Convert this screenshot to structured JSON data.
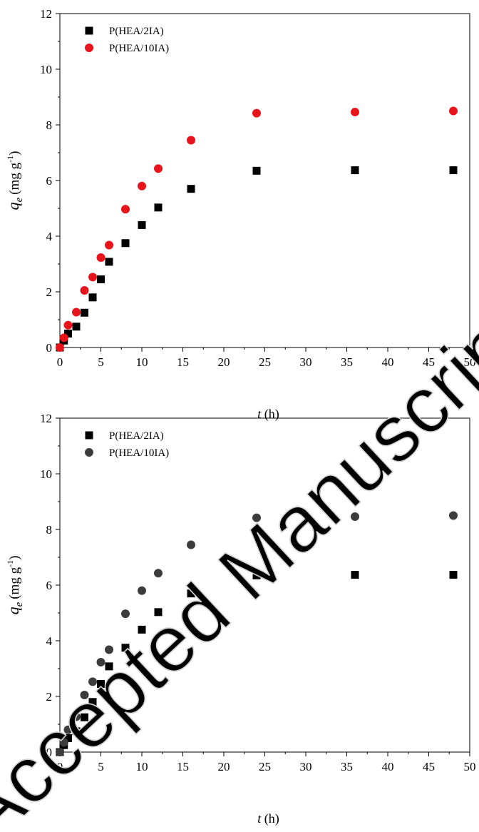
{
  "watermark": "Accepted Manuscript",
  "chart_data": [
    {
      "type": "scatter",
      "xlabel": {
        "var": "t",
        "unit": " (h)"
      },
      "ylabel": {
        "var": "q",
        "sub": "e",
        "unit_pre": "(mg g",
        "sup": "-1",
        "unit_post": ")"
      },
      "xlim": [
        0,
        50
      ],
      "ylim": [
        0,
        12
      ],
      "x_ticks": [
        0,
        5,
        10,
        15,
        20,
        25,
        30,
        35,
        40,
        45,
        50
      ],
      "y_ticks": [
        0,
        2,
        4,
        6,
        8,
        10,
        12
      ],
      "legend_position": "top-left",
      "series": [
        {
          "name": "P(HEA/2IA)",
          "marker": "square",
          "color": "#000000",
          "x": [
            0,
            0.5,
            1,
            2,
            3,
            4,
            5,
            6,
            8,
            10,
            12,
            16,
            24,
            36,
            48
          ],
          "y": [
            0,
            0.25,
            0.5,
            0.75,
            1.25,
            1.8,
            2.45,
            3.08,
            3.75,
            4.4,
            5.03,
            5.7,
            6.35,
            6.37,
            6.37
          ]
        },
        {
          "name": "P(HEA/10IA)",
          "marker": "circle",
          "color": "#e8141b",
          "x": [
            0,
            0.5,
            1,
            2,
            3,
            4,
            5,
            6,
            8,
            10,
            12,
            16,
            24,
            36,
            48
          ],
          "y": [
            0,
            0.35,
            0.8,
            1.27,
            2.05,
            2.53,
            3.23,
            3.68,
            4.97,
            5.8,
            6.43,
            7.45,
            8.42,
            8.46,
            8.5
          ]
        }
      ]
    },
    {
      "type": "scatter",
      "xlabel": {
        "var": "t",
        "unit": " (h)"
      },
      "ylabel": {
        "var": "q",
        "sub": "e",
        "unit_pre": "(mg g",
        "sup": "-1",
        "unit_post": ")"
      },
      "xlim": [
        0,
        50
      ],
      "ylim": [
        0,
        12
      ],
      "x_ticks": [
        0,
        5,
        10,
        15,
        20,
        25,
        30,
        35,
        40,
        45,
        50
      ],
      "y_ticks": [
        0,
        2,
        4,
        6,
        8,
        10,
        12
      ],
      "legend_position": "top-left",
      "series": [
        {
          "name": "P(HEA/2IA)",
          "marker": "square",
          "color": "#000000",
          "x": [
            0,
            0.5,
            1,
            2,
            3,
            4,
            5,
            6,
            8,
            10,
            12,
            16,
            24,
            36,
            48
          ],
          "y": [
            0,
            0.25,
            0.5,
            0.75,
            1.25,
            1.8,
            2.45,
            3.08,
            3.75,
            4.4,
            5.03,
            5.7,
            6.35,
            6.37,
            6.37
          ]
        },
        {
          "name": "P(HEA/10IA)",
          "marker": "circle",
          "color": "#3c3c3c",
          "x": [
            0,
            0.5,
            1,
            2,
            3,
            4,
            5,
            6,
            8,
            10,
            12,
            16,
            24,
            36,
            48
          ],
          "y": [
            0,
            0.35,
            0.8,
            1.27,
            2.05,
            2.53,
            3.23,
            3.68,
            4.97,
            5.8,
            6.43,
            7.45,
            8.42,
            8.46,
            8.5
          ]
        }
      ]
    }
  ]
}
